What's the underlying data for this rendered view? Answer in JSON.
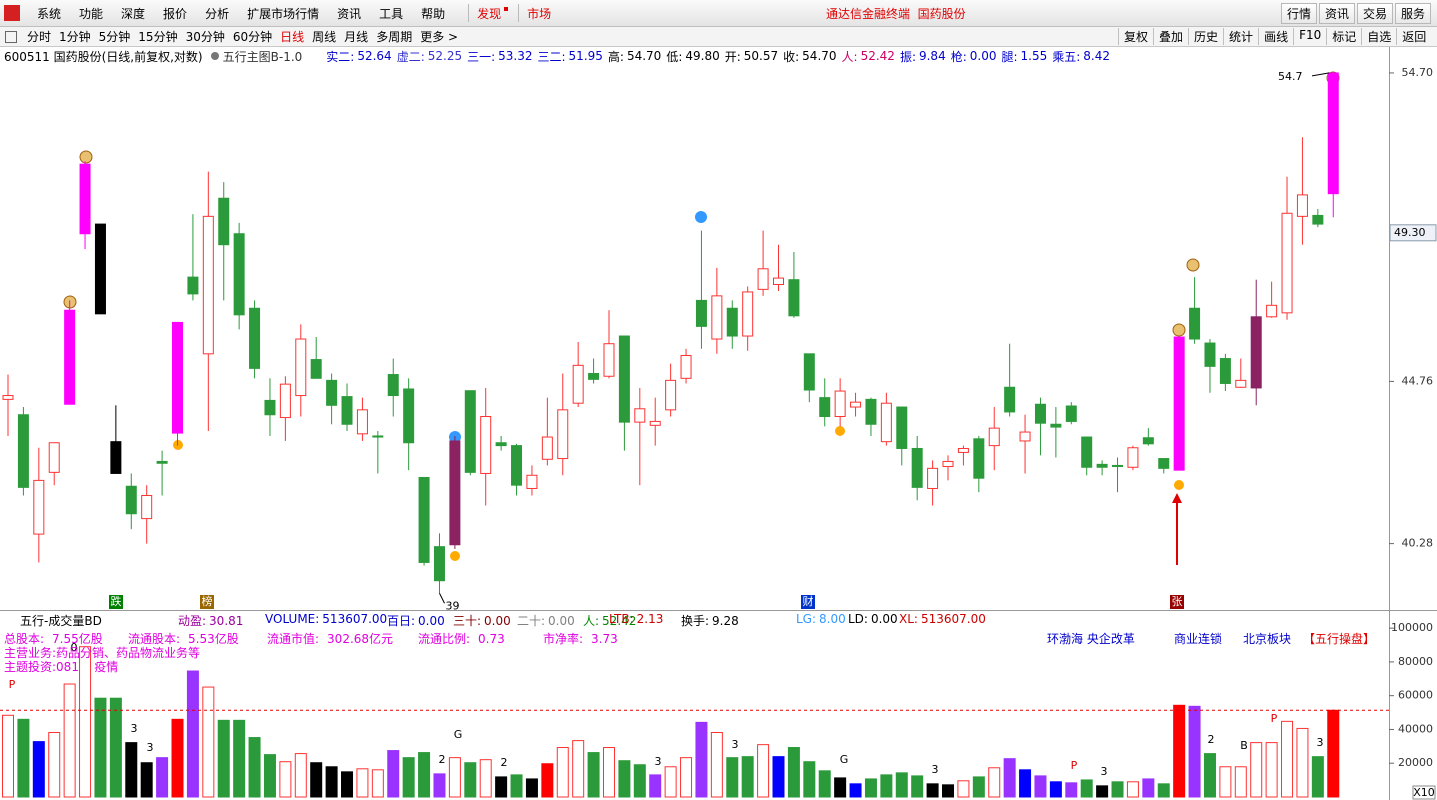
{
  "ui": {
    "menu": [
      "系统",
      "功能",
      "深度",
      "报价",
      "分析",
      "扩展市场行情",
      "资讯",
      "工具",
      "帮助"
    ],
    "discover": "发现",
    "market": "市场",
    "center_title": "通达信金融终端  国药股份",
    "right_menu": [
      "行情",
      "资讯",
      "交易",
      "服务"
    ],
    "periods": [
      "分时",
      "1分钟",
      "5分钟",
      "15分钟",
      "30分钟",
      "60分钟",
      "日线",
      "周线",
      "月线",
      "多周期",
      "更多 >"
    ],
    "active_period_index": 6,
    "tools": [
      "复权",
      "叠加",
      "历史",
      "统计",
      "画线",
      "F10",
      "标记",
      "自选",
      "返回"
    ],
    "stock": "600511 国药股份(日线,前复权,对数)",
    "indicator": "五行主图B-1.0",
    "readouts": [
      {
        "label": "实二:",
        "value": "52.64",
        "color": "#0000cc"
      },
      {
        "label": "虚二:",
        "value": "52.25",
        "color": "#3333cc"
      },
      {
        "label": "三一:",
        "value": "53.32",
        "color": "#0000cc"
      },
      {
        "label": "三二:",
        "value": "51.95",
        "color": "#0000cc"
      },
      {
        "label": "高:",
        "value": "54.70",
        "color": "#000000"
      },
      {
        "label": "低:",
        "value": "49.80",
        "color": "#000000"
      },
      {
        "label": "开:",
        "value": "50.57",
        "color": "#000000"
      },
      {
        "label": "收:",
        "value": "54.70",
        "color": "#000000"
      },
      {
        "label": "人:",
        "value": "52.42",
        "color": "#cc0066"
      },
      {
        "label": "振:",
        "value": "9.84",
        "color": "#0000cc"
      },
      {
        "label": "枪:",
        "value": "0.00",
        "color": "#0000cc"
      },
      {
        "label": "腿:",
        "value": "1.55",
        "color": "#0000cc"
      },
      {
        "label": "乘五:",
        "value": "8.42",
        "color": "#0000cc"
      }
    ],
    "volume_title": "五行-成交量BD",
    "volume_readouts": [
      {
        "label": "动盈:",
        "value": "30.81",
        "color": "#990099"
      },
      {
        "label": "VOLUME:",
        "value": "513607.00",
        "color": "#0000cc"
      },
      {
        "label": "百日:",
        "value": "0.00",
        "color": "#0000cc"
      },
      {
        "label": "三十:",
        "value": "0.00",
        "color": "#800000"
      },
      {
        "label": "二十:",
        "value": "0.00",
        "color": "#808080"
      },
      {
        "label": "人:",
        "value": "52.42",
        "color": "#008800"
      },
      {
        "label": "LTB:",
        "value": "2.13",
        "color": "#cc0000"
      },
      {
        "label": "换手:",
        "value": "9.28",
        "color": "#000000"
      },
      {
        "label": "LG:",
        "value": "8.00",
        "color": "#3399ff"
      },
      {
        "label": "LD:",
        "value": "0.00",
        "color": "#000000"
      },
      {
        "label": "XL:",
        "value": "513607.00",
        "color": "#cc0000"
      }
    ],
    "fundamentals": [
      {
        "label": "总股本:",
        "value": "7.55亿股"
      },
      {
        "label": "流通股本:",
        "value": "5.53亿股"
      },
      {
        "label": "流通市值:",
        "value": "302.68亿元"
      },
      {
        "label": "流通比例:",
        "value": "0.73"
      },
      {
        "label": "市净率:",
        "value": "3.73"
      }
    ],
    "business": "主营业务:药品分销、药品物流业务等",
    "themes": "主题投资:081    疫情",
    "tags": [
      "环渤海 央企改革",
      "商业连锁",
      "北京板块"
    ],
    "tag_special": "【五行操盘】",
    "event_marks": [
      {
        "text": "跌",
        "color": "#008000"
      },
      {
        "text": "榜",
        "color": "#996600"
      },
      {
        "text": "财",
        "color": "#0033cc"
      },
      {
        "text": "张",
        "color": "#990000"
      }
    ]
  },
  "chart_data": [
    {
      "type": "candlestick",
      "log_scale": true,
      "up_color": "#ff3232",
      "ylim": [
        38.83,
        55.09
      ],
      "yticks": [
        40.28,
        44.76,
        {
          "value": 54.7,
          "label": "54.70"
        }
      ],
      "price_marker": {
        "value": 49.3,
        "label": "49.30"
      },
      "open": [
        44.24,
        43.8,
        40.53,
        42.19,
        44.1,
        49.27,
        49.58,
        43.04,
        41.81,
        40.94,
        42.49,
        43.28,
        47.9,
        45.57,
        50.42,
        49.27,
        46.94,
        44.21,
        43.72,
        44.35,
        45.4,
        44.79,
        44.32,
        43.26,
        43.2,
        44.96,
        44.54,
        42.05,
        40.2,
        40.25,
        44.49,
        42.16,
        43.01,
        42.93,
        41.75,
        42.55,
        42.57,
        44.13,
        44.99,
        44.91,
        46.1,
        43.59,
        43.5,
        43.94,
        44.85,
        47.18,
        46.01,
        46.94,
        46.1,
        47.52,
        47.67,
        47.82,
        45.57,
        44.29,
        43.75,
        44.02,
        44.24,
        43.04,
        44.02,
        42.85,
        41.75,
        42.35,
        42.74,
        43.12,
        42.93,
        44.59,
        43.06,
        44.1,
        43.53,
        44.05,
        43.17,
        42.41,
        42.38,
        42.33,
        43.15,
        42.57,
        42.25,
        46.94,
        45.89,
        45.43,
        44.59,
        44.57,
        46.68,
        46.8,
        49.83,
        49.86,
        50.57
      ],
      "high": [
        44.96,
        44.02,
        42.87,
        43.01,
        47.18,
        51.65,
        49.58,
        44.07,
        42.16,
        41.84,
        42.79,
        46.51,
        49.9,
        51.3,
        50.95,
        49.62,
        47.18,
        44.85,
        44.91,
        46.45,
        46.07,
        44.99,
        44.7,
        44.29,
        43.34,
        45.43,
        44.85,
        42.05,
        40.55,
        43.2,
        44.49,
        44.57,
        43.2,
        42.98,
        42.38,
        44.29,
        44.99,
        45.92,
        45.43,
        46.88,
        46.1,
        44.57,
        44.29,
        45.28,
        45.72,
        49.37,
        48.19,
        47.18,
        47.61,
        49.37,
        48.92,
        48.69,
        45.57,
        44.85,
        44.85,
        44.43,
        44.29,
        44.43,
        44.02,
        43.2,
        42.52,
        42.66,
        42.93,
        43.2,
        44.02,
        45.87,
        43.8,
        44.29,
        44.02,
        44.16,
        43.17,
        42.52,
        42.6,
        42.93,
        43.42,
        42.57,
        46.07,
        47.9,
        46.01,
        45.57,
        45.43,
        47.82,
        47.76,
        51.13,
        52.46,
        50.07,
        54.7
      ],
      "low": [
        43.2,
        41.56,
        39.79,
        41.84,
        44.1,
        48.78,
        46.77,
        42.16,
        40.66,
        40.28,
        41.56,
        42.93,
        47.18,
        43.34,
        47.18,
        46.3,
        44.85,
        43.2,
        43.06,
        43.75,
        44.85,
        43.53,
        43.34,
        43.06,
        42.16,
        43.75,
        42.25,
        39.71,
        39.0,
        40.14,
        42.11,
        41.29,
        42.79,
        41.56,
        41.56,
        42.38,
        42.11,
        44.02,
        44.7,
        44.85,
        42.79,
        41.84,
        42.93,
        43.75,
        44.7,
        45.72,
        45.57,
        45.72,
        45.66,
        47.32,
        47.47,
        46.65,
        44.16,
        43.47,
        43.47,
        43.75,
        43.2,
        42.93,
        42.38,
        41.43,
        41.29,
        41.97,
        42.38,
        41.65,
        42.25,
        43.75,
        42.16,
        42.66,
        42.6,
        43.53,
        42.11,
        42.11,
        41.65,
        42.25,
        42.93,
        42.16,
        42.25,
        45.87,
        44.43,
        44.48,
        44.57,
        44.07,
        46.65,
        46.59,
        48.92,
        49.48,
        49.8
      ],
      "close": [
        44.35,
        41.78,
        41.97,
        43.01,
        46.88,
        51.55,
        46.77,
        42.16,
        41.07,
        41.56,
        42.44,
        46.51,
        47.38,
        49.83,
        48.92,
        46.74,
        45.14,
        43.8,
        44.68,
        46.01,
        44.85,
        44.07,
        43.53,
        43.94,
        43.17,
        44.35,
        43.01,
        39.79,
        39.32,
        43.06,
        42.19,
        43.75,
        42.93,
        41.84,
        42.11,
        43.17,
        43.94,
        45.23,
        44.82,
        45.87,
        43.59,
        43.97,
        43.61,
        44.79,
        45.52,
        46.39,
        47.32,
        46.1,
        47.44,
        48.16,
        47.87,
        46.71,
        44.51,
        43.75,
        44.48,
        44.16,
        43.53,
        44.13,
        42.85,
        41.78,
        42.3,
        42.49,
        42.85,
        42.03,
        43.42,
        43.88,
        43.31,
        43.56,
        43.45,
        43.61,
        42.33,
        42.33,
        42.35,
        42.87,
        42.98,
        42.3,
        46.07,
        46.01,
        45.2,
        44.7,
        44.79,
        46.68,
        47.03,
        49.93,
        50.53,
        49.58,
        54.7
      ],
      "colors": [
        "#ff3232",
        "#2b9a3a",
        "#ff3232",
        "#ff3232",
        "#ff00ff",
        "#ff00ff",
        "#000000",
        "#000000",
        "#2b9a3a",
        "#ff3232",
        "#2b9a3a",
        "#ff00ff",
        "#2b9a3a",
        "#ff3232",
        "#2b9a3a",
        "#2b9a3a",
        "#2b9a3a",
        "#2b9a3a",
        "#ff3232",
        "#ff3232",
        "#2b9a3a",
        "#2b9a3a",
        "#2b9a3a",
        "#ff3232",
        "#2b9a3a",
        "#2b9a3a",
        "#2b9a3a",
        "#2b9a3a",
        "#2b9a3a",
        "#8b2362",
        "#2b9a3a",
        "#ff3232",
        "#2b9a3a",
        "#2b9a3a",
        "#ff3232",
        "#ff3232",
        "#ff3232",
        "#ff3232",
        "#2b9a3a",
        "#ff3232",
        "#2b9a3a",
        "#ff3232",
        "#ff3232",
        "#ff3232",
        "#ff3232",
        "#2b9a3a",
        "#ff3232",
        "#2b9a3a",
        "#ff3232",
        "#ff3232",
        "#ff3232",
        "#2b9a3a",
        "#2b9a3a",
        "#2b9a3a",
        "#ff3232",
        "#ff3232",
        "#2b9a3a",
        "#ff3232",
        "#2b9a3a",
        "#2b9a3a",
        "#ff3232",
        "#ff3232",
        "#ff3232",
        "#2b9a3a",
        "#ff3232",
        "#2b9a3a",
        "#ff3232",
        "#2b9a3a",
        "#2b9a3a",
        "#2b9a3a",
        "#2b9a3a",
        "#2b9a3a",
        "#2b9a3a",
        "#ff3232",
        "#2b9a3a",
        "#2b9a3a",
        "#ff00ff",
        "#2b9a3a",
        "#2b9a3a",
        "#2b9a3a",
        "#ff3232",
        "#8b2362",
        "#ff3232",
        "#ff3232",
        "#ff3232",
        "#2b9a3a",
        "#ff00ff"
      ]
    },
    {
      "type": "bar",
      "up_color": "#ff3232",
      "unit_label": "X10",
      "ylim": [
        0,
        106000
      ],
      "yticks": [
        20000,
        40000,
        60000,
        80000,
        100000
      ],
      "values": [
        48400,
        46000,
        32800,
        38200,
        66900,
        89000,
        58500,
        58500,
        32200,
        20300,
        23300,
        46000,
        74600,
        65100,
        45400,
        45400,
        35200,
        25100,
        20900,
        25700,
        20300,
        17900,
        14900,
        16700,
        16100,
        27500,
        23300,
        26300,
        13700,
        23300,
        20300,
        22100,
        11900,
        13100,
        10700,
        19700,
        29300,
        33400,
        26300,
        29300,
        21500,
        19100,
        13100,
        17900,
        23300,
        44200,
        38200,
        23300,
        23900,
        31000,
        23900,
        29300,
        20900,
        15500,
        11300,
        7800,
        10700,
        13100,
        14300,
        12500,
        7800,
        7200,
        9600,
        11900,
        17300,
        22700,
        16100,
        12500,
        9000,
        8400,
        10100,
        6600,
        9000,
        9000,
        10700,
        7800,
        54300,
        53700,
        25700,
        17900,
        17900,
        32200,
        32200,
        44800,
        40600,
        23900,
        51361
      ],
      "colors": [
        "#ff3232",
        "#2b9a3a",
        "#0000ff",
        "#ff3232",
        "#ff3232",
        "#ff3232",
        "#2b9a3a",
        "#2b9a3a",
        "#000000",
        "#000000",
        "#9933ff",
        "#ff0000",
        "#9933ff",
        "#ff3232",
        "#2b9a3a",
        "#2b9a3a",
        "#2b9a3a",
        "#2b9a3a",
        "#ff3232",
        "#ff3232",
        "#000000",
        "#000000",
        "#000000",
        "#ff3232",
        "#ff3232",
        "#9933ff",
        "#2b9a3a",
        "#2b9a3a",
        "#9933ff",
        "#ff3232",
        "#2b9a3a",
        "#ff3232",
        "#000000",
        "#2b9a3a",
        "#000000",
        "#ff0000",
        "#ff3232",
        "#ff3232",
        "#2b9a3a",
        "#ff3232",
        "#2b9a3a",
        "#2b9a3a",
        "#9933ff",
        "#ff3232",
        "#ff3232",
        "#9933ff",
        "#ff3232",
        "#2b9a3a",
        "#2b9a3a",
        "#ff3232",
        "#0000ff",
        "#2b9a3a",
        "#2b9a3a",
        "#2b9a3a",
        "#000000",
        "#0000ff",
        "#2b9a3a",
        "#2b9a3a",
        "#2b9a3a",
        "#2b9a3a",
        "#000000",
        "#000000",
        "#ff3232",
        "#2b9a3a",
        "#ff3232",
        "#9933ff",
        "#0000ff",
        "#9933ff",
        "#0000ff",
        "#9933ff",
        "#2b9a3a",
        "#000000",
        "#2b9a3a",
        "#ff3232",
        "#9933ff",
        "#2b9a3a",
        "#ff0000",
        "#9933ff",
        "#2b9a3a",
        "#ff3232",
        "#ff3232",
        "#ff3232",
        "#ff3232",
        "#ff3232",
        "#ff3232",
        "#2b9a3a",
        "#ff0000"
      ],
      "annotations": [
        {
          "text": "0",
          "color": "#000000"
        },
        {
          "text": "P",
          "color": "#e00000"
        },
        {
          "text": "3",
          "color": "#000000"
        },
        {
          "text": "3",
          "color": "#000000"
        },
        {
          "text": "2",
          "color": "#000000"
        },
        {
          "text": "G",
          "color": "#000000"
        },
        {
          "text": "2",
          "color": "#000000"
        },
        {
          "text": "3",
          "color": "#000000"
        },
        {
          "text": "3",
          "color": "#000000"
        },
        {
          "text": "G",
          "color": "#000000"
        },
        {
          "text": "3",
          "color": "#000000"
        },
        {
          "text": "P",
          "color": "#e00000"
        },
        {
          "text": "3",
          "color": "#000000"
        },
        {
          "text": "2",
          "color": "#000000"
        },
        {
          "text": "B",
          "color": "#000000"
        },
        {
          "text": "P",
          "color": "#e00000"
        },
        {
          "text": "3",
          "color": "#000000"
        }
      ]
    }
  ]
}
